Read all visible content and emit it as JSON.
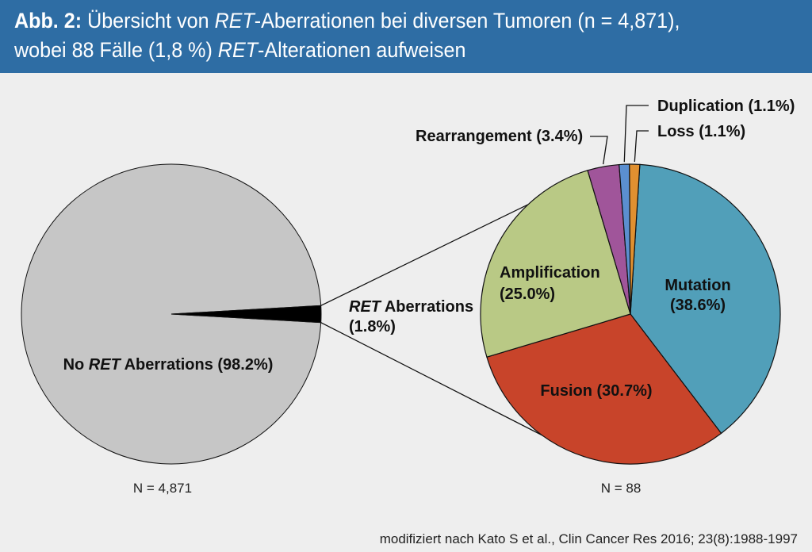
{
  "header": {
    "fig_label": "Abb. 2:",
    "line1_a": " Übersicht von ",
    "line1_ital": "RET",
    "line1_b": "-Aberrationen bei diversen Tumoren (n = 4,871),",
    "line2_a": "wobei 88 Fälle (1,8 %) ",
    "line2_ital": "RET",
    "line2_b": "-Alterationen aufweisen"
  },
  "colors": {
    "header_bg": "#2e6da4",
    "background": "#eeeeee",
    "no_ret": "#c6c6c6",
    "ret_slice": "#000000",
    "mutation": "#519fb9",
    "fusion": "#c8442a",
    "amplification": "#b9c985",
    "rearrangement": "#a0559a",
    "duplication": "#5b8fd0",
    "loss": "#e09030"
  },
  "chart_data": [
    {
      "type": "pie",
      "total_label": "N = 4,871",
      "slices": [
        {
          "name_pre": "No ",
          "name_ital": "RET",
          "name_post": " Aberrations (98.2%)",
          "value": 98.2
        },
        {
          "name_pre": "",
          "name_ital": "RET",
          "name_post": " Aberrations",
          "name_line2": "(1.8%)",
          "value": 1.8
        }
      ]
    },
    {
      "type": "pie",
      "total_label": "N = 88",
      "slices": [
        {
          "name": "Mutation",
          "pct": "(38.6%)",
          "value": 38.6
        },
        {
          "name": "Fusion (30.7%)",
          "value": 30.7
        },
        {
          "name": "Amplification",
          "pct": "(25.0%)",
          "value": 25.0
        },
        {
          "name": "Rearrangement (3.4%)",
          "value": 3.4
        },
        {
          "name": "Duplication (1.1%)",
          "value": 1.1
        },
        {
          "name": "Loss (1.1%)",
          "value": 1.1
        }
      ]
    }
  ],
  "source": "modifiziert nach Kato S et al., Clin Cancer Res 2016; 23(8):1988-1997"
}
